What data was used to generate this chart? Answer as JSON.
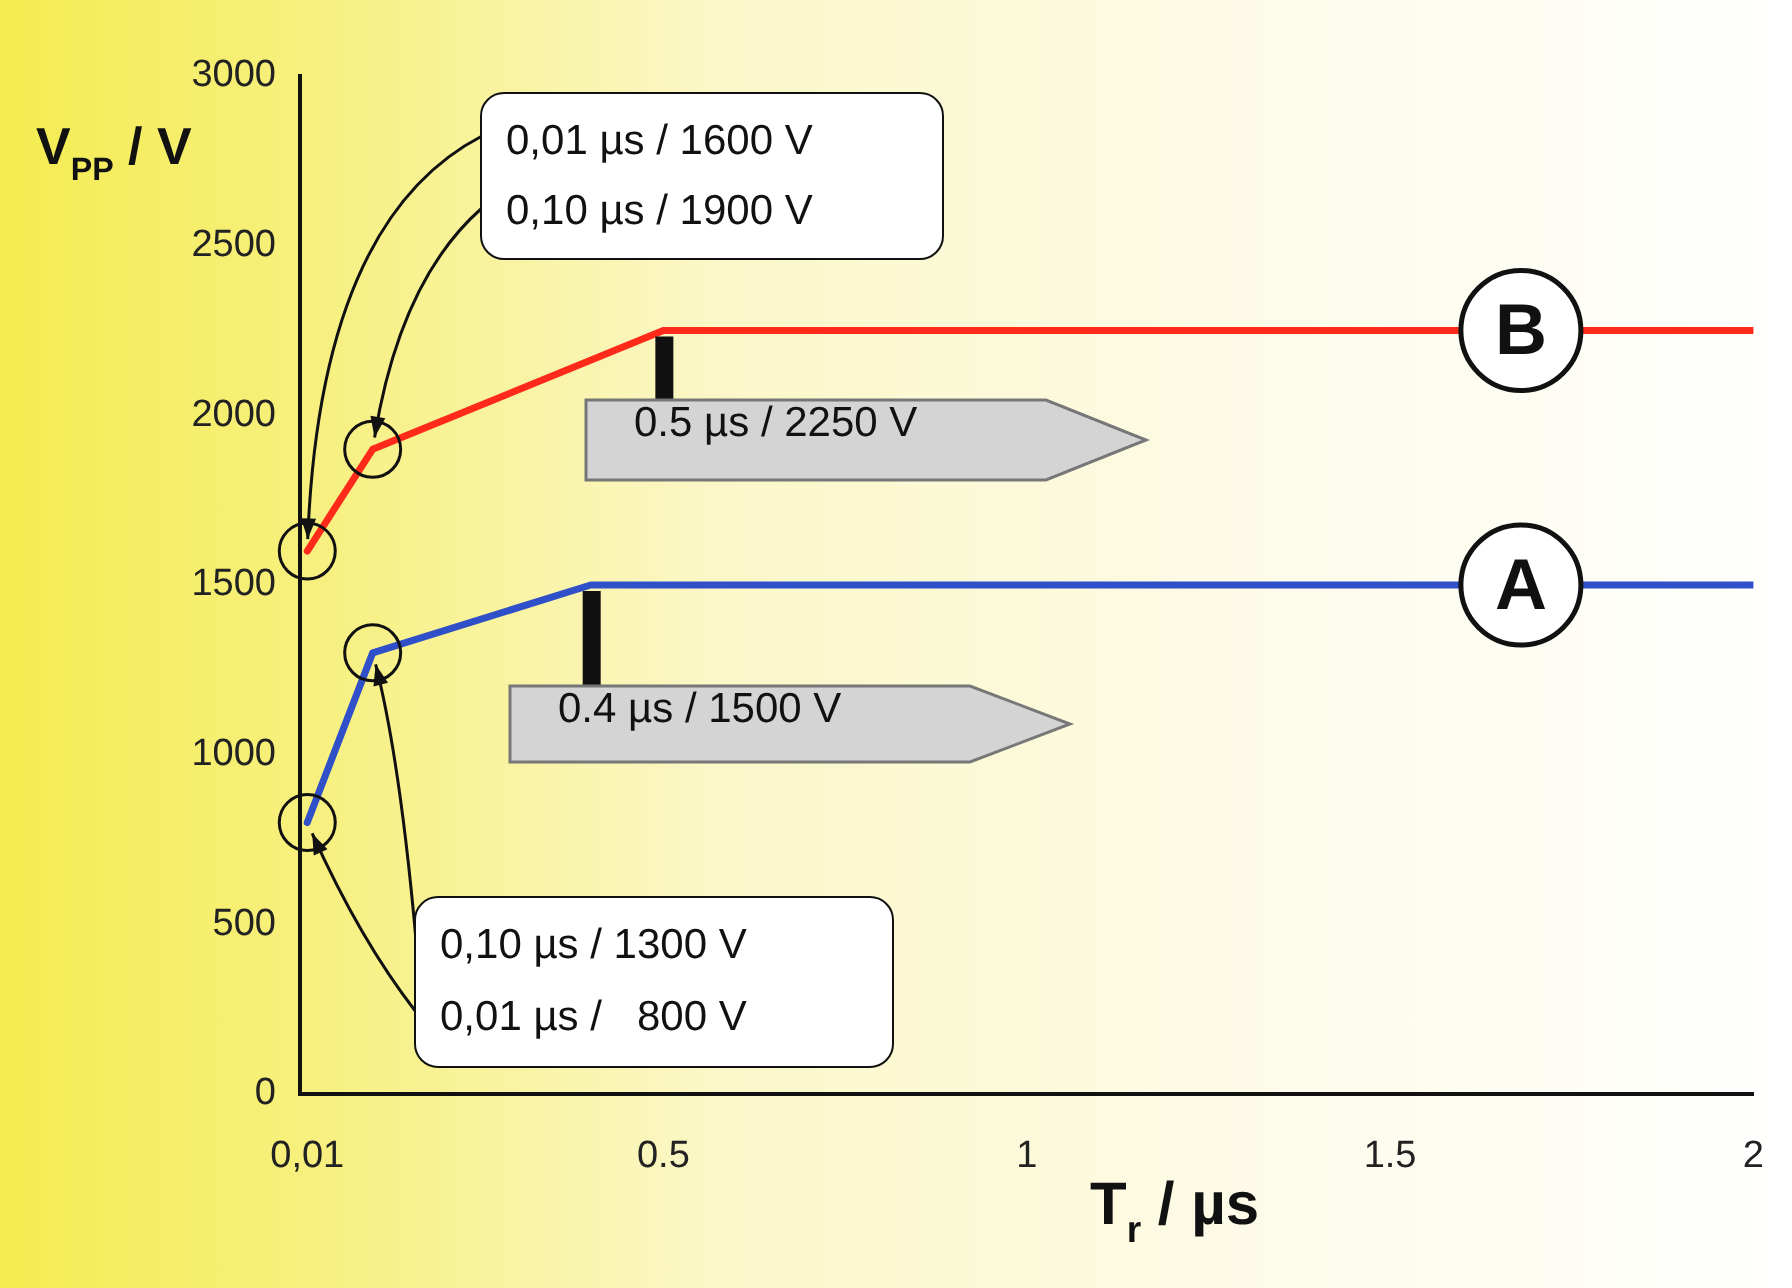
{
  "chart_data": {
    "type": "line",
    "xlabel": "T$_{r}$ / µs",
    "ylabel": "V$_{PP}$ / V",
    "xlim": [
      0,
      2
    ],
    "xticks": [
      {
        "value": 0.01,
        "label": "0,01"
      },
      0.5,
      1,
      1.5,
      2
    ],
    "ylim": [
      0,
      3000
    ],
    "yticks": [
      0,
      500,
      1000,
      1500,
      2000,
      2500,
      3000
    ],
    "grid": false,
    "legend": false,
    "line_style": "solid",
    "series": [
      {
        "name": "B",
        "color": "#ff2a1a",
        "x": [
          0.01,
          0.1,
          0.5,
          2
        ],
        "values": [
          1600,
          1900,
          2250,
          2250
        ]
      },
      {
        "name": "A",
        "color": "#2f50c8",
        "x": [
          0.01,
          0.1,
          0.4,
          2
        ],
        "values": [
          800,
          1300,
          1500,
          1500
        ]
      }
    ],
    "annotations": [
      {
        "text": "0,01 µs / 1600 V",
        "x": 0.01,
        "y": 1600
      },
      {
        "text": "0,10 µs / 1900 V",
        "x": 0.1,
        "y": 1900
      },
      {
        "text": "0.5 µs / 2250 V",
        "x": 0.5,
        "y": 2250
      },
      {
        "text": "0.4 µs / 1500 V",
        "x": 0.4,
        "y": 1500
      },
      {
        "text": "0,10 µs / 1300 V",
        "x": 0.1,
        "y": 1300
      },
      {
        "text": "0,01 µs /   800 V",
        "x": 0.01,
        "y": 800
      }
    ]
  }
}
